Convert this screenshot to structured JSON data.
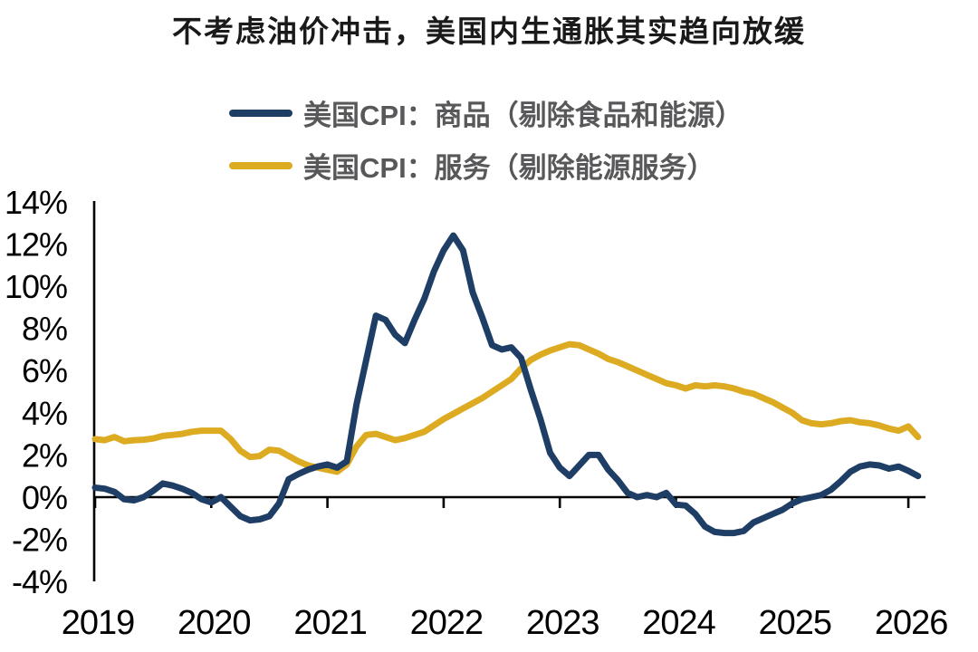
{
  "title": "不考虑油价冲击，美国内生通胀其实趋向放缓",
  "legend": [
    {
      "label": "美国CPI：商品（剔除食品和能源）",
      "color": "#1f3e66"
    },
    {
      "label": "美国CPI：服务（剔除能源服务）",
      "color": "#dcab21"
    }
  ],
  "colors": {
    "goods_line": "#1f3e66",
    "services_line": "#dcab21",
    "axis": "#000000",
    "title_text": "#1a1a1a",
    "legend_text": "#58585a",
    "background": "#ffffff"
  },
  "chart_data": {
    "type": "line",
    "title": "不考虑油价冲击，美国内生通胀其实趋向放缓",
    "x_start": "2019-01",
    "x_end": "2026-02",
    "x_frequency": "monthly",
    "x_tick_labels": [
      "2019",
      "2020",
      "2021",
      "2022",
      "2023",
      "2024",
      "2025",
      "2026"
    ],
    "y_tick_labels": [
      "14%",
      "12%",
      "10%",
      "8%",
      "6%",
      "4%",
      "2%",
      "0%",
      "-2%",
      "-4%"
    ],
    "ylim": [
      -4,
      14
    ],
    "y_tick_step": 2,
    "grid": false,
    "legend_position": "top-left",
    "series": [
      {
        "name": "美国CPI：商品（剔除食品和能源）",
        "color": "#1f3e66",
        "values": [
          0.45,
          0.4,
          0.25,
          -0.1,
          -0.15,
          0.0,
          0.3,
          0.65,
          0.55,
          0.4,
          0.2,
          -0.1,
          -0.25,
          0.0,
          -0.45,
          -0.9,
          -1.1,
          -1.05,
          -0.9,
          -0.3,
          0.85,
          1.1,
          1.3,
          1.45,
          1.55,
          1.4,
          1.7,
          4.4,
          6.5,
          8.6,
          8.4,
          7.7,
          7.3,
          8.4,
          9.4,
          10.7,
          11.7,
          12.4,
          11.7,
          9.7,
          8.5,
          7.2,
          7.0,
          7.1,
          6.6,
          5.1,
          3.7,
          2.1,
          1.4,
          1.0,
          1.5,
          2.0,
          2.0,
          1.3,
          0.8,
          0.2,
          0.0,
          0.1,
          0.0,
          0.2,
          -0.35,
          -0.4,
          -0.8,
          -1.4,
          -1.65,
          -1.7,
          -1.7,
          -1.6,
          -1.2,
          -1.0,
          -0.8,
          -0.6,
          -0.3,
          -0.1,
          0.0,
          0.1,
          0.35,
          0.75,
          1.2,
          1.45,
          1.55,
          1.5,
          1.35,
          1.45,
          1.25,
          1.0
        ]
      },
      {
        "name": "美国CPI：服务（剔除能源服务）",
        "color": "#dcab21",
        "values": [
          2.75,
          2.7,
          2.85,
          2.65,
          2.7,
          2.72,
          2.78,
          2.9,
          2.95,
          3.0,
          3.1,
          3.15,
          3.15,
          3.15,
          2.75,
          2.2,
          1.9,
          1.95,
          2.25,
          2.2,
          1.95,
          1.7,
          1.5,
          1.4,
          1.3,
          1.2,
          1.55,
          2.4,
          2.95,
          3.0,
          2.85,
          2.7,
          2.8,
          2.95,
          3.1,
          3.4,
          3.7,
          3.95,
          4.2,
          4.45,
          4.7,
          5.0,
          5.3,
          5.6,
          6.1,
          6.5,
          6.75,
          6.95,
          7.1,
          7.25,
          7.2,
          7.0,
          6.8,
          6.55,
          6.4,
          6.2,
          6.0,
          5.8,
          5.6,
          5.4,
          5.3,
          5.15,
          5.3,
          5.25,
          5.3,
          5.25,
          5.15,
          5.0,
          4.9,
          4.7,
          4.5,
          4.25,
          4.0,
          3.65,
          3.5,
          3.45,
          3.5,
          3.6,
          3.65,
          3.55,
          3.5,
          3.4,
          3.25,
          3.15,
          3.35,
          2.85
        ]
      }
    ]
  }
}
